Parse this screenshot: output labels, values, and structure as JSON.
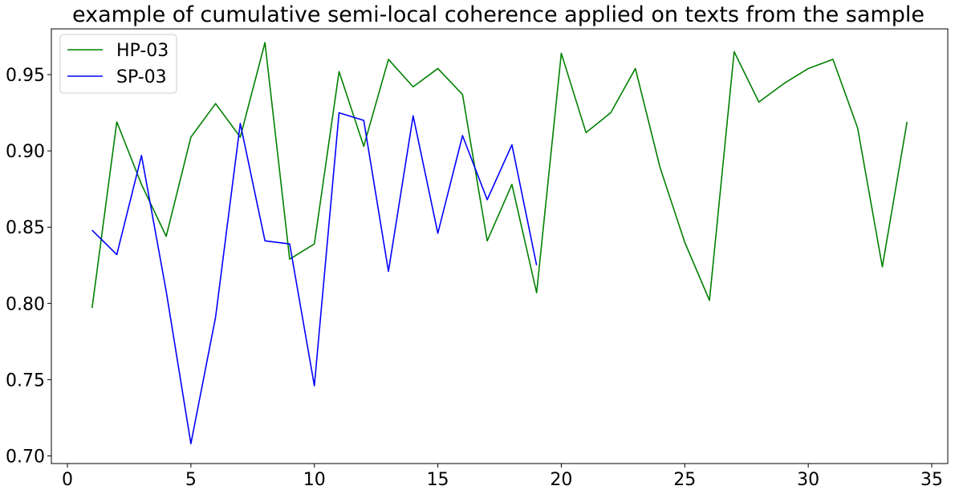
{
  "chart_data": {
    "type": "line",
    "title": "example of cumulative semi-local coherence applied on texts from the sample",
    "xlabel": "",
    "ylabel": "",
    "xlim": [
      -0.65,
      35.65
    ],
    "ylim": [
      0.695,
      0.98
    ],
    "xticks": [
      0,
      5,
      10,
      15,
      20,
      25,
      30,
      35
    ],
    "xtick_labels": [
      "0",
      "5",
      "10",
      "15",
      "20",
      "25",
      "30",
      "35"
    ],
    "yticks": [
      0.7,
      0.75,
      0.8,
      0.85,
      0.9,
      0.95
    ],
    "ytick_labels": [
      "0.70",
      "0.75",
      "0.80",
      "0.85",
      "0.90",
      "0.95"
    ],
    "grid": false,
    "legend": "top-left",
    "series": [
      {
        "name": "HP-03",
        "color": "#008000",
        "x": [
          1,
          2,
          3,
          4,
          5,
          6,
          7,
          8,
          9,
          10,
          11,
          12,
          13,
          14,
          15,
          16,
          17,
          18,
          19,
          20,
          21,
          22,
          23,
          24,
          25,
          26,
          27,
          28,
          29,
          30,
          31,
          32,
          33,
          34
        ],
        "y": [
          0.797,
          0.919,
          0.878,
          0.844,
          0.909,
          0.931,
          0.909,
          0.971,
          0.829,
          0.839,
          0.952,
          0.903,
          0.96,
          0.942,
          0.954,
          0.937,
          0.841,
          0.878,
          0.807,
          0.964,
          0.912,
          0.925,
          0.954,
          0.889,
          0.84,
          0.802,
          0.965,
          0.932,
          0.944,
          0.954,
          0.96,
          0.915,
          0.824,
          0.919
        ]
      },
      {
        "name": "SP-03",
        "color": "#0000ff",
        "x": [
          1,
          2,
          3,
          4,
          5,
          6,
          7,
          8,
          9,
          10,
          11,
          12,
          13,
          14,
          15,
          16,
          17,
          18,
          19
        ],
        "y": [
          0.848,
          0.832,
          0.897,
          0.808,
          0.708,
          0.791,
          0.918,
          0.841,
          0.839,
          0.746,
          0.925,
          0.92,
          0.821,
          0.923,
          0.846,
          0.91,
          0.868,
          0.904,
          0.825
        ]
      }
    ]
  }
}
